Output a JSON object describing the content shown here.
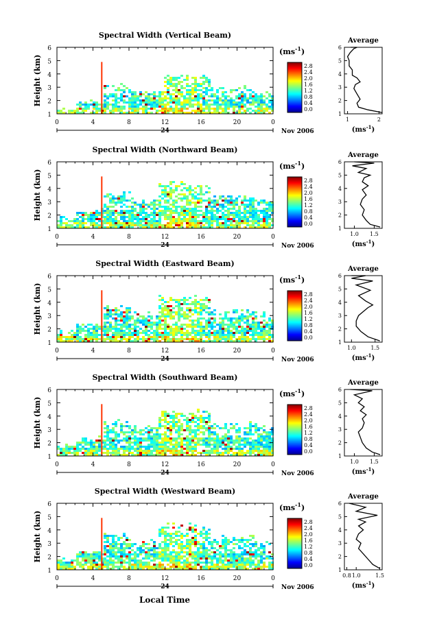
{
  "shared": {
    "ylabel": "Height (km)",
    "xticks": [
      "0",
      "4",
      "8",
      "12",
      "16",
      "20",
      "0"
    ],
    "yticks": [
      "1",
      "2",
      "3",
      "4",
      "5",
      "6"
    ],
    "day_label": "24",
    "date_label": "Nov 2006",
    "colorbar_unit": "(ms",
    "colorbar_unit_sup": "-1",
    "colorbar_unit_close": ")",
    "avg_title": "Average",
    "avg_unit": "(ms",
    "xlabel": "Local Time"
  },
  "chart_data": [
    {
      "type": "heatmap",
      "title": "Spectral Width (Vertical Beam)",
      "colorbar_ticks": [
        "2.8",
        "2.4",
        "2.0",
        "1.6",
        "1.2",
        "0.8",
        "0.4",
        "0.0"
      ],
      "x_range": [
        0,
        24
      ],
      "y_range": [
        1,
        6
      ],
      "profile": {
        "type": "line",
        "title": "Average",
        "xticks": [
          "1",
          "2"
        ],
        "xlim": [
          0.9,
          2.1
        ],
        "ylim": [
          1,
          6
        ],
        "x": [
          2.1,
          1.65,
          1.35,
          1.3,
          1.4,
          1.3,
          1.2,
          1.25,
          1.4,
          1.3,
          1.15,
          1.15,
          1.05,
          1.05,
          1.0,
          1.08,
          1.2,
          1.3,
          1.1
        ],
        "y": [
          1.1,
          1.3,
          1.5,
          1.8,
          2.1,
          2.5,
          2.9,
          3.2,
          3.4,
          3.7,
          3.9,
          4.3,
          4.6,
          5.0,
          5.3,
          5.6,
          5.9,
          6.0,
          6.0
        ]
      }
    },
    {
      "type": "heatmap",
      "title": "Spectral Width (Northward Beam)",
      "colorbar_ticks": [
        "2.8",
        "2.4",
        "2.0",
        "1.6",
        "1.2",
        "0.8",
        "0.4",
        "0.0"
      ],
      "x_range": [
        0,
        24
      ],
      "y_range": [
        1,
        6
      ],
      "profile": {
        "type": "line",
        "title": "Average",
        "xticks": [
          "1.0",
          "1.5"
        ],
        "xlim": [
          0.75,
          1.7
        ],
        "ylim": [
          1,
          6
        ],
        "x": [
          1.65,
          1.4,
          1.3,
          1.2,
          1.25,
          1.15,
          1.2,
          1.3,
          1.2,
          1.35,
          1.2,
          1.25,
          1.4,
          1.1,
          1.3,
          0.95,
          1.5,
          1.0
        ],
        "y": [
          1.1,
          1.3,
          1.6,
          2.0,
          2.4,
          2.8,
          3.2,
          3.5,
          3.9,
          4.2,
          4.5,
          4.8,
          5.0,
          5.2,
          5.5,
          5.7,
          5.9,
          6.0
        ]
      }
    },
    {
      "type": "heatmap",
      "title": "Spectral Width (Eastward Beam)",
      "colorbar_ticks": [
        "2.8",
        "2.4",
        "2.0",
        "1.6",
        "1.2",
        "0.8",
        "0.4",
        "0.0"
      ],
      "x_range": [
        0,
        24
      ],
      "y_range": [
        1,
        6
      ],
      "profile": {
        "type": "line",
        "title": "Average",
        "xticks": [
          "1.0",
          "1.5"
        ],
        "xlim": [
          0.85,
          1.65
        ],
        "ylim": [
          1,
          6
        ],
        "x": [
          1.6,
          1.35,
          1.2,
          1.1,
          1.1,
          1.15,
          1.25,
          1.35,
          1.45,
          1.3,
          1.15,
          1.4,
          1.1,
          1.45,
          1.0,
          1.3,
          1.0
        ],
        "y": [
          1.1,
          1.4,
          1.8,
          2.2,
          2.6,
          3.0,
          3.3,
          3.6,
          3.8,
          4.1,
          4.5,
          4.9,
          5.3,
          5.6,
          5.8,
          6.0,
          6.0
        ]
      }
    },
    {
      "type": "heatmap",
      "title": "Spectral Width (Southward Beam)",
      "colorbar_ticks": [
        "2.8",
        "2.4",
        "2.0",
        "1.6",
        "1.2",
        "0.8",
        "0.4",
        "0.0"
      ],
      "x_range": [
        0,
        24
      ],
      "y_range": [
        1,
        6
      ],
      "profile": {
        "type": "line",
        "title": "Average",
        "xticks": [
          "1.0",
          "1.5"
        ],
        "xlim": [
          0.75,
          1.7
        ],
        "ylim": [
          1,
          6
        ],
        "x": [
          1.65,
          1.45,
          1.3,
          1.2,
          1.15,
          1.1,
          1.2,
          1.25,
          1.2,
          1.3,
          1.15,
          1.25,
          1.1,
          1.2,
          1.0,
          1.45,
          0.9
        ],
        "y": [
          1.1,
          1.3,
          1.6,
          2.0,
          2.4,
          2.8,
          3.1,
          3.5,
          3.8,
          4.1,
          4.4,
          4.7,
          5.0,
          5.3,
          5.6,
          5.9,
          6.0
        ]
      }
    },
    {
      "type": "heatmap",
      "title": "Spectral Width (Westward Beam)",
      "colorbar_ticks": [
        "2.8",
        "2.4",
        "2.0",
        "1.6",
        "1.2",
        "0.8",
        "0.4",
        "0.0"
      ],
      "x_range": [
        0,
        24
      ],
      "y_range": [
        1,
        6
      ],
      "profile": {
        "type": "line",
        "title": "Average",
        "xticks": [
          "0.8",
          "1.0",
          "1.5"
        ],
        "xlim": [
          0.75,
          1.55
        ],
        "ylim": [
          1,
          6
        ],
        "x": [
          1.5,
          1.35,
          1.25,
          1.15,
          1.05,
          1.1,
          1.0,
          1.05,
          1.15,
          1.05,
          1.2,
          1.05,
          1.45,
          1.0,
          1.2,
          0.85
        ],
        "y": [
          1.1,
          1.4,
          1.8,
          2.2,
          2.6,
          3.0,
          3.3,
          3.7,
          4.0,
          4.3,
          4.6,
          4.8,
          5.1,
          5.4,
          5.7,
          6.0
        ]
      }
    }
  ]
}
